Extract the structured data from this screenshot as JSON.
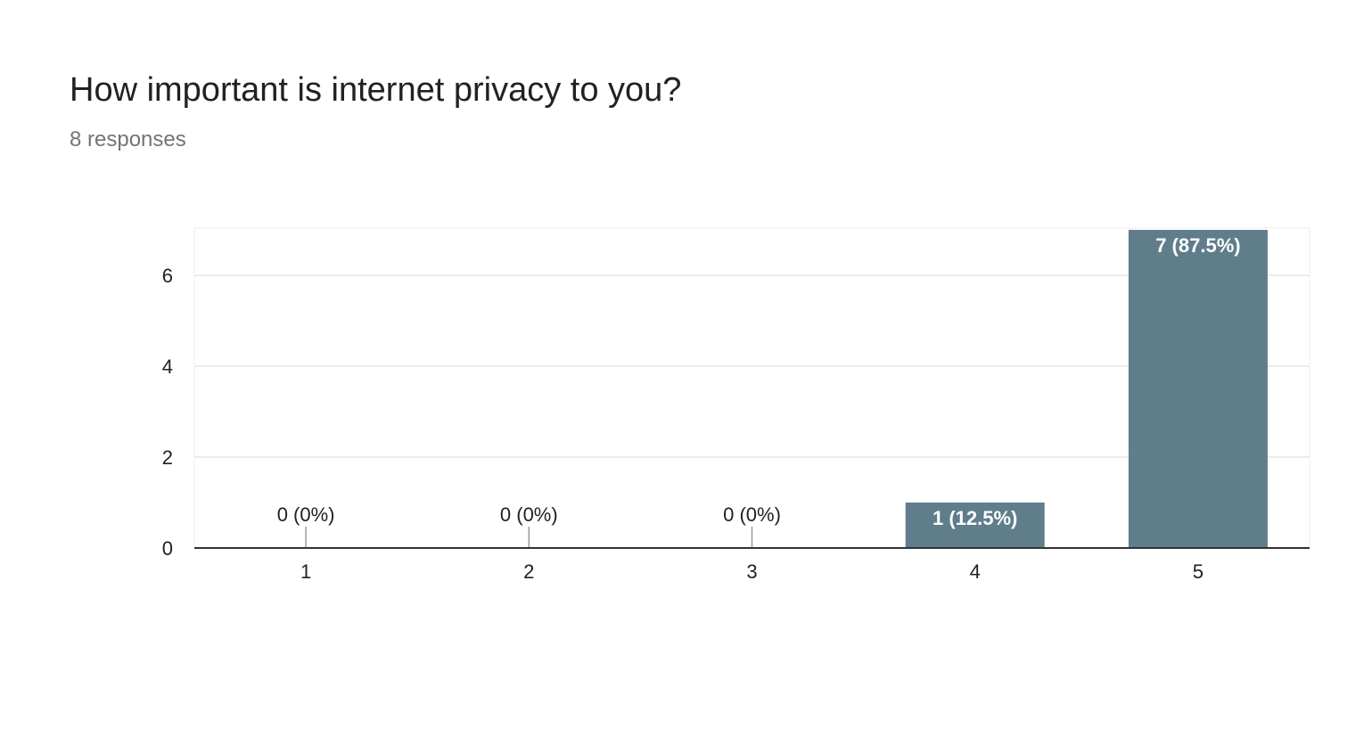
{
  "question": {
    "title": "How important is internet privacy to you?",
    "responses": "8 responses"
  },
  "chart_data": {
    "type": "bar",
    "title": "How important is internet privacy to you?",
    "subtitle": "8 responses",
    "categories": [
      "1",
      "2",
      "3",
      "4",
      "5"
    ],
    "values": [
      0,
      0,
      0,
      1,
      7
    ],
    "data_labels": [
      "0 (0%)",
      "0 (0%)",
      "0 (0%)",
      "1 (12.5%)",
      "7 (87.5%)"
    ],
    "y_ticks": [
      0,
      2,
      4,
      6
    ],
    "ylim": [
      0,
      7
    ],
    "xlabel": "",
    "ylabel": "",
    "grid": true,
    "legend": "none",
    "bar_color": "#607d8b"
  }
}
